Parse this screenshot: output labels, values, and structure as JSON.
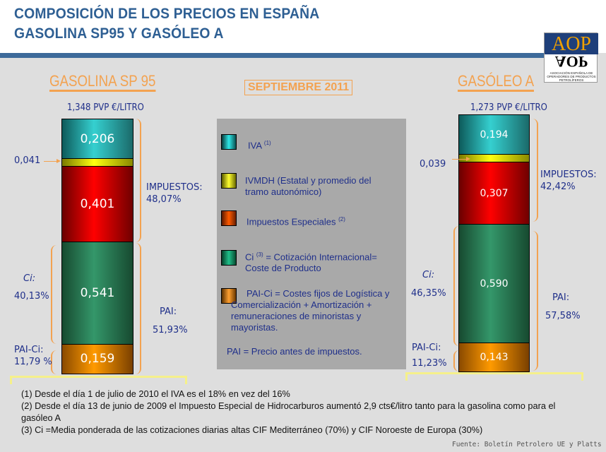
{
  "header": {
    "title_line1": "COMPOSICIÓN DE LOS PRECIOS EN ESPAÑA",
    "title_line2": "GASOLINA SP95 Y GASÓLEO A"
  },
  "logo": {
    "text_top": "AOP",
    "text_mirror": "AOP",
    "subtitle": "ASOCIACIÓN ESPAÑOLA DE OPERADORES DE PRODUCTOS PETROLÍFEROS"
  },
  "period": "SEPTIEMBRE 2011",
  "colors": {
    "iva": "#2ec4c4",
    "ivmdh": "#f2f200",
    "especiales": "#ee0000",
    "ci": "#2e9563",
    "pai_ci": "#f59a00",
    "accent": "#f3a250",
    "title": "#2e5f93"
  },
  "chart_data": [
    {
      "type": "bar",
      "stacked": true,
      "title": "GASOLINA SP 95",
      "pvp_label": "1,348 PVP €/LITRO",
      "total": 1.348,
      "segments": [
        {
          "key": "iva",
          "value": 0.206,
          "label": "0,206"
        },
        {
          "key": "ivmdh",
          "value": 0.041,
          "label": "0,041"
        },
        {
          "key": "especiales",
          "value": 0.401,
          "label": "0,401"
        },
        {
          "key": "ci",
          "value": 0.541,
          "label": "0,541"
        },
        {
          "key": "pai_ci",
          "value": 0.159,
          "label": "0,159"
        }
      ],
      "annotations": {
        "impuestos_label": "IMPUESTOS:",
        "impuestos_pct": "48,07%",
        "pai_label": "PAI:",
        "pai_pct": "51,93%",
        "ci_label": "Ci:",
        "ci_pct": "40,13%",
        "paici_label": "PAI-Ci:",
        "paici_pct": "11,79 %"
      }
    },
    {
      "type": "bar",
      "stacked": true,
      "title": "GASÓLEO A",
      "pvp_label": "1,273 PVP €/LITRO",
      "total": 1.273,
      "segments": [
        {
          "key": "iva",
          "value": 0.194,
          "label": "0,194"
        },
        {
          "key": "ivmdh",
          "value": 0.039,
          "label": "0,039"
        },
        {
          "key": "especiales",
          "value": 0.307,
          "label": "0,307"
        },
        {
          "key": "ci",
          "value": 0.59,
          "label": "0,590"
        },
        {
          "key": "pai_ci",
          "value": 0.143,
          "label": "0,143"
        }
      ],
      "annotations": {
        "impuestos_label": "IMPUESTOS:",
        "impuestos_pct": "42,42%",
        "pai_label": "PAI:",
        "pai_pct": "57,58%",
        "ci_label": "Ci:",
        "ci_pct": "46,35%",
        "paici_label": "PAI-Ci:",
        "paici_pct": "11,23%"
      }
    }
  ],
  "legend": {
    "iva": "IVA",
    "iva_note": "(1)",
    "ivmdh": "IVMDH (Estatal y promedio del tramo autonómico)",
    "especiales": "Impuestos Especiales",
    "especiales_note": "(2)",
    "ci_pre": "Ci",
    "ci_note": "(3)",
    "ci_post": "= Cotización Internacional= Coste de Producto",
    "pai_ci": "PAI-Ci = Costes fijos de Logística y Comercialización + Amortización + remuneraciones de minoristas y mayoristas.",
    "pai": "PAI  =  Precio antes de impuestos."
  },
  "notes": [
    "(1) Desde el día 1 de julio de 2010 el IVA es el 18% en vez del 16%",
    "(2) Desde el día 13 de junio de 2009 el Impuesto Especial de Hidrocarburos aumentó 2,9 cts€/litro tanto para la gasolina como para el gasóleo A",
    "(3) Ci =Media ponderada de las cotizaciones diarias altas CIF Mediterráneo (70%) y CIF Noroeste de Europa (30%)"
  ],
  "source": "Fuente: Boletín Petrolero UE y Platts"
}
